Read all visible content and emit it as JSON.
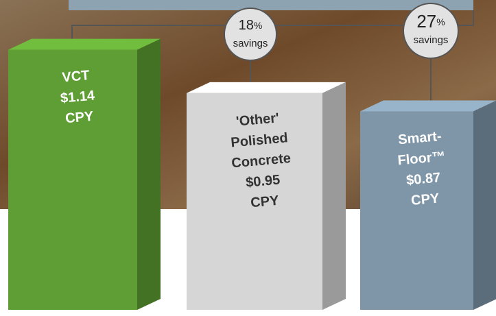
{
  "chart_data": {
    "type": "bar3d",
    "categories": [
      "VCT",
      "'Other' Polished Concrete",
      "Smart-Floor™"
    ],
    "values": [
      1.14,
      0.95,
      0.87
    ],
    "value_labels": [
      "$1.14",
      "$0.95",
      "$0.87"
    ],
    "unit_label": "CPY",
    "colors": [
      "#5e9e34",
      "#d6d6d6",
      "#7f96a9"
    ],
    "text_colors": [
      "#ffffff",
      "#333333",
      "#ffffff"
    ],
    "ylim": [
      0,
      1.25
    ],
    "annotations": [
      {
        "number": 18,
        "sign": "%",
        "text": "savings"
      },
      {
        "number": 27,
        "sign": "%",
        "text": "savings"
      }
    ]
  }
}
